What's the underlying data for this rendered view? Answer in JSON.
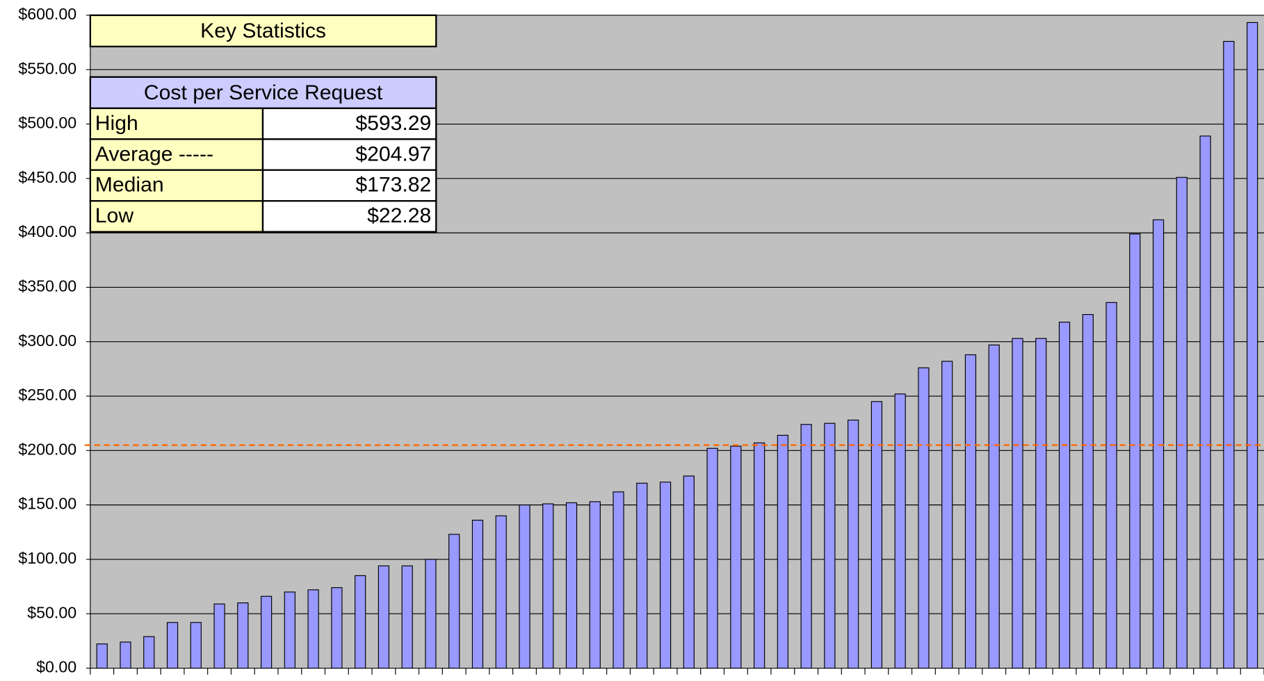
{
  "chart_data": {
    "type": "bar",
    "categories": [
      null,
      null,
      null,
      null,
      null,
      null,
      null,
      null,
      null,
      null,
      null,
      null,
      null,
      null,
      null,
      null,
      null,
      null,
      null,
      null,
      null,
      null,
      null,
      null,
      null,
      null,
      null,
      null,
      null,
      null,
      null,
      null,
      null,
      null,
      null,
      null,
      null,
      null,
      null,
      null,
      null,
      null,
      null,
      null,
      null,
      null,
      null,
      null,
      null,
      null
    ],
    "values": [
      22.28,
      24,
      29,
      42,
      42,
      59,
      60,
      66,
      70,
      72,
      74,
      85,
      94,
      94,
      100,
      123,
      136,
      140,
      150,
      151,
      152,
      153,
      162,
      170,
      171,
      176.6,
      202,
      204,
      207,
      214,
      224,
      225,
      228,
      245,
      252,
      276,
      282,
      288,
      297,
      303,
      303,
      318,
      325,
      336,
      399,
      412,
      451,
      489,
      576,
      593.29
    ],
    "color": "#9999ff",
    "ylim": [
      0,
      600
    ],
    "yticks": [
      {
        "value": 0,
        "label": "$0.00"
      },
      {
        "value": 50,
        "label": "$50.00"
      },
      {
        "value": 100,
        "label": "$100.00"
      },
      {
        "value": 150,
        "label": "$150.00"
      },
      {
        "value": 200,
        "label": "$200.00"
      },
      {
        "value": 250,
        "label": "$250.00"
      },
      {
        "value": 300,
        "label": "$300.00"
      },
      {
        "value": 350,
        "label": "$350.00"
      },
      {
        "value": 400,
        "label": "$400.00"
      },
      {
        "value": 450,
        "label": "$450.00"
      },
      {
        "value": 500,
        "label": "$500.00"
      },
      {
        "value": 550,
        "label": "$550.00"
      },
      {
        "value": 600,
        "label": "$600.00"
      }
    ],
    "grid": true,
    "stats": {
      "title": "Key Statistics",
      "header": "Cost per Service Request",
      "rows": [
        {
          "label": "High",
          "value": 593.29,
          "value_label": "$593.29"
        },
        {
          "label": "Average -----",
          "value": 204.97,
          "value_label": "$204.97",
          "color": "#ff6600"
        },
        {
          "label": "Median",
          "value": 173.82,
          "value_label": "$173.82"
        },
        {
          "label": "Low",
          "value": 22.28,
          "value_label": "$22.28"
        }
      ]
    }
  }
}
